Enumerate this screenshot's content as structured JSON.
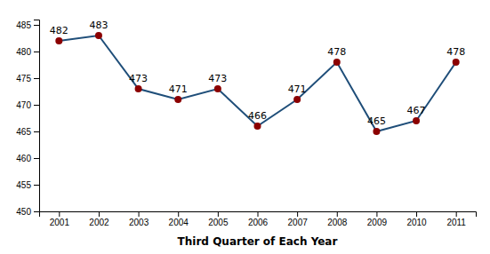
{
  "chart_data": {
    "type": "line",
    "xlabel": "Third Quarter of Each Year",
    "x": [
      2001,
      2002,
      2003,
      2004,
      2005,
      2006,
      2007,
      2008,
      2009,
      2010,
      2011
    ],
    "values": [
      482,
      483,
      473,
      471,
      473,
      466,
      471,
      478,
      465,
      467,
      478
    ],
    "color": "#1F4E79",
    "colors": [
      "#8B0000",
      "#8B0000",
      "#8B0000",
      "#8B0000",
      "#8B0000",
      "#8B0000",
      "#8B0000",
      "#8B0000",
      "#8B0000",
      "#8B0000",
      "#8B0000"
    ],
    "marker": "circle",
    "data_labels": true,
    "xlim": [
      2000.5,
      2011.5
    ],
    "xticks": [
      2001,
      2002,
      2003,
      2004,
      2005,
      2006,
      2007,
      2008,
      2009,
      2010,
      2011
    ],
    "ylim": [
      450,
      486
    ],
    "yticks": [
      450,
      455,
      460,
      465,
      470,
      475,
      480,
      485
    ],
    "grid": false
  }
}
